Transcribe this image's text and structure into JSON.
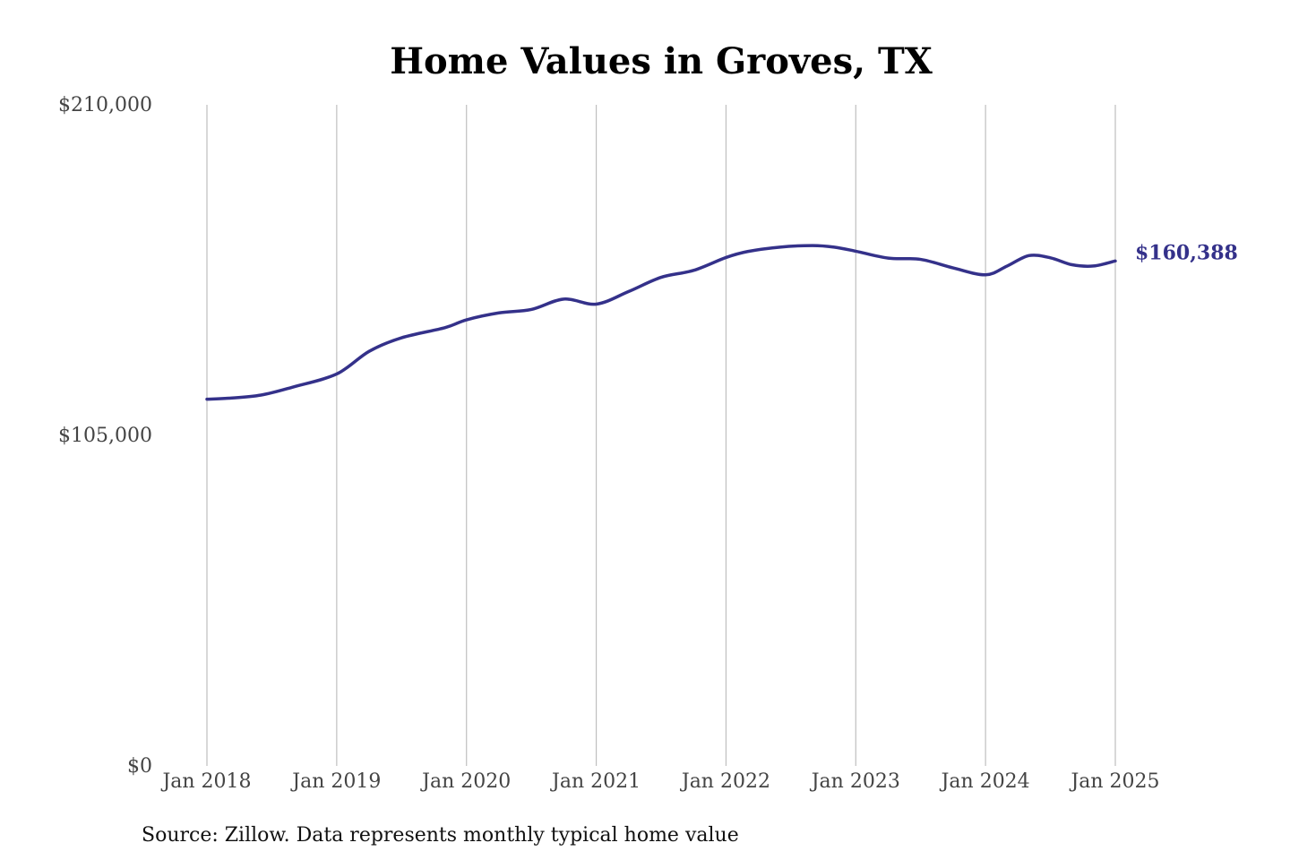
{
  "chart_data": {
    "type": "line",
    "title": "Home Values in Groves, TX",
    "xlabel": "",
    "ylabel": "",
    "ylim": [
      0,
      210000
    ],
    "y_ticks": [
      {
        "value": 0,
        "label": "$0"
      },
      {
        "value": 105000,
        "label": "$105,000"
      },
      {
        "value": 210000,
        "label": "$210,000"
      }
    ],
    "x_ticks": [
      {
        "value": "2018-01",
        "label": "Jan 2018"
      },
      {
        "value": "2019-01",
        "label": "Jan 2019"
      },
      {
        "value": "2020-01",
        "label": "Jan 2020"
      },
      {
        "value": "2021-01",
        "label": "Jan 2021"
      },
      {
        "value": "2022-01",
        "label": "Jan 2022"
      },
      {
        "value": "2023-01",
        "label": "Jan 2023"
      },
      {
        "value": "2024-01",
        "label": "Jan 2024"
      },
      {
        "value": "2025-01",
        "label": "Jan 2025"
      }
    ],
    "xlim": [
      "2018-01",
      "2025-01"
    ],
    "grid": {
      "vertical": true,
      "horizontal": false
    },
    "legend": "none",
    "line_color": "#34318a",
    "end_label": "$160,388",
    "series": [
      {
        "x": [
          "2018-01",
          "2018-03",
          "2018-06",
          "2018-09",
          "2019-01",
          "2019-04",
          "2019-07",
          "2019-11",
          "2020-01",
          "2020-04",
          "2020-07",
          "2020-10",
          "2021-01",
          "2021-04",
          "2021-07",
          "2021-10",
          "2022-01",
          "2022-03",
          "2022-06",
          "2022-09",
          "2022-11",
          "2023-01",
          "2023-04",
          "2023-07",
          "2023-10",
          "2024-01",
          "2024-03",
          "2024-05",
          "2024-07",
          "2024-09",
          "2024-11",
          "2025-01"
        ],
        "values": [
          116500,
          116800,
          117800,
          120400,
          124500,
          131700,
          136000,
          139200,
          141700,
          143900,
          145000,
          148300,
          146700,
          150700,
          155200,
          157400,
          161500,
          163400,
          164800,
          165300,
          164800,
          163500,
          161300,
          160900,
          158200,
          156000,
          158800,
          162100,
          161400,
          159200,
          158800,
          160388
        ]
      }
    ]
  },
  "footer": {
    "source": "Source: Zillow. Data represents monthly typical home value"
  }
}
